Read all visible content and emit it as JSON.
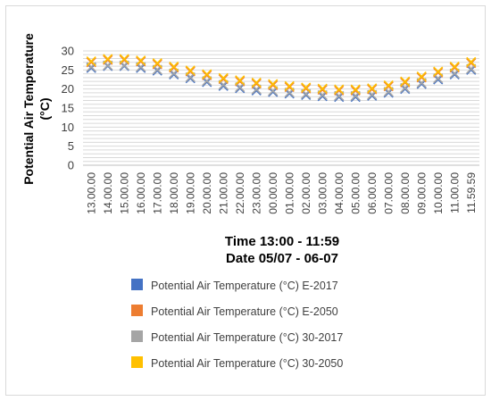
{
  "chart_data": {
    "type": "scatter",
    "title": "",
    "ylabel": "Potential Air Temperature (°C)",
    "xlabel_line1": "Time 13:00 - 11:59",
    "xlabel_line2": "Date 05/07 - 06-07",
    "ylim": [
      0,
      30
    ],
    "yticks": [
      0,
      5,
      10,
      15,
      20,
      25,
      30
    ],
    "grid": true,
    "legend_position": "bottom",
    "marker": "x",
    "x": [
      "13.00.00",
      "14.00.00",
      "15.00.00",
      "16.00.00",
      "17.00.00",
      "18.00.00",
      "19.00.00",
      "20.00.00",
      "21.00.00",
      "22.00.00",
      "23.00.00",
      "00.00.00",
      "01.00.00",
      "02.00.00",
      "03.00.00",
      "04.00.00",
      "05.00.00",
      "06.00.00",
      "07.00.00",
      "08.00.00",
      "09.00.00",
      "10.00.00",
      "11.00.00",
      "11.59.59"
    ],
    "series": [
      {
        "name": "Potential Air Temperature  (°C) E-2017",
        "color": "#4472c4",
        "values": [
          25.5,
          26.0,
          26.0,
          25.5,
          24.8,
          23.8,
          22.8,
          21.8,
          20.8,
          20.2,
          19.6,
          19.2,
          18.8,
          18.4,
          18.1,
          17.9,
          17.9,
          18.2,
          19.0,
          20.0,
          21.3,
          22.5,
          23.8,
          25.0
        ]
      },
      {
        "name": "Potential Air Temperature  (°C) E-2050",
        "color": "#ed7d31",
        "values": [
          27.0,
          27.6,
          27.6,
          27.2,
          26.5,
          25.6,
          24.6,
          23.6,
          22.6,
          22.0,
          21.4,
          21.0,
          20.5,
          20.1,
          19.8,
          19.6,
          19.6,
          19.9,
          20.7,
          21.7,
          23.0,
          24.3,
          25.6,
          26.8
        ]
      },
      {
        "name": "Potential Air Temperature  (°C) 30-2017",
        "color": "#a5a5a5",
        "values": [
          25.8,
          26.2,
          26.2,
          25.8,
          25.1,
          24.1,
          23.1,
          22.1,
          21.1,
          20.5,
          19.9,
          19.5,
          19.1,
          18.7,
          18.4,
          18.2,
          18.2,
          18.5,
          19.3,
          20.3,
          21.6,
          22.8,
          24.1,
          25.3
        ]
      },
      {
        "name": "Potential Air Temperature  (°C) 30-2050",
        "color": "#ffc000",
        "values": [
          27.3,
          27.9,
          27.9,
          27.5,
          26.8,
          25.9,
          24.9,
          23.9,
          22.9,
          22.3,
          21.7,
          21.3,
          20.8,
          20.4,
          20.1,
          19.9,
          19.9,
          20.2,
          21.0,
          22.0,
          23.3,
          24.6,
          25.9,
          27.1
        ]
      }
    ]
  }
}
